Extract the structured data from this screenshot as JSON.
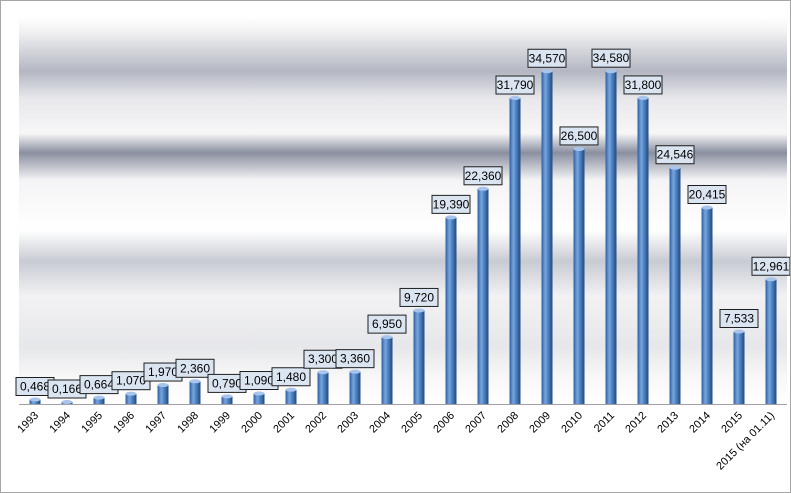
{
  "chart_data": {
    "type": "bar",
    "categories": [
      "1993",
      "1994",
      "1995",
      "1996",
      "1997",
      "1998",
      "1999",
      "2000",
      "2001",
      "2002",
      "2003",
      "2004",
      "2005",
      "2006",
      "2007",
      "2008",
      "2009",
      "2010",
      "2011",
      "2012",
      "2013",
      "2014",
      "2015",
      "2015 (на 01.11)"
    ],
    "values": [
      0.468,
      0.166,
      0.664,
      1.07,
      1.97,
      2.36,
      0.79,
      1.09,
      1.48,
      3.3,
      3.36,
      6.95,
      9.72,
      19.39,
      22.36,
      31.79,
      34.57,
      26.5,
      34.58,
      31.8,
      24.546,
      20.415,
      7.533,
      12.961
    ],
    "data_labels": [
      "0,468",
      "0,166",
      "0,664",
      "1,070",
      "1,970",
      "2,360",
      "0,790",
      "1,090",
      "1,480",
      "3,300",
      "3,360",
      "6,950",
      "9,720",
      "19,390",
      "22,360",
      "31,790",
      "34,570",
      "26,500",
      "34,580",
      "31,800",
      "24,546",
      "20,415",
      "7,533",
      "12,961"
    ],
    "title": "",
    "xlabel": "",
    "ylabel": "",
    "ylim": [
      0,
      40
    ],
    "grid": false,
    "legend": "none",
    "colors": {
      "bar_light": "#8fb4e3",
      "bar_mid": "#4f81bd",
      "bar_dark": "#1f4e8c",
      "bar_top": "#a9c4eb",
      "label_fill": "#dbe5f1",
      "band_dark": "#8a8fa0",
      "band_light": "#f4f4f4"
    }
  }
}
